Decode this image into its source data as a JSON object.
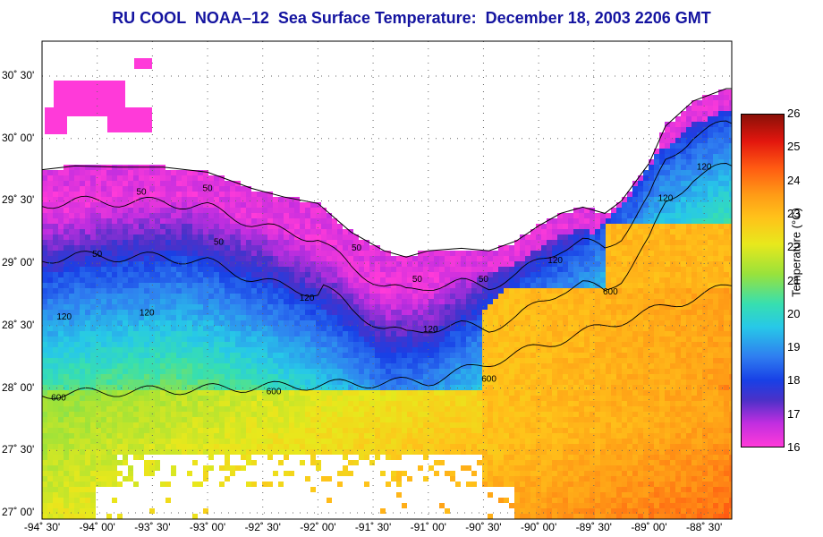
{
  "title": "RU COOL  NOAA–12  Sea Surface Temperature:  December 18, 2003 2206 GMT",
  "map": {
    "lat_labels": [
      {
        "value": 30.5,
        "text": "30˚ 30'"
      },
      {
        "value": 30.0,
        "text": "30˚ 00'"
      },
      {
        "value": 29.5,
        "text": "29˚ 30'"
      },
      {
        "value": 29.0,
        "text": "29˚ 00'"
      },
      {
        "value": 28.5,
        "text": "28˚ 30'"
      },
      {
        "value": 28.0,
        "text": "28˚ 00'"
      },
      {
        "value": 27.5,
        "text": "27˚ 30'"
      },
      {
        "value": 27.0,
        "text": "27˚ 00'"
      }
    ],
    "lon_labels": [
      {
        "value": -94.5,
        "text": "-94˚ 30'"
      },
      {
        "value": -94.0,
        "text": "-94˚ 00'"
      },
      {
        "value": -93.5,
        "text": "-93˚ 30'"
      },
      {
        "value": -93.0,
        "text": "-93˚ 00'"
      },
      {
        "value": -92.5,
        "text": "-92˚ 30'"
      },
      {
        "value": -92.0,
        "text": "-92˚ 00'"
      },
      {
        "value": -91.5,
        "text": "-91˚ 30'"
      },
      {
        "value": -91.0,
        "text": "-91˚ 00'"
      },
      {
        "value": -90.5,
        "text": "-90˚ 30'"
      },
      {
        "value": -90.0,
        "text": "-90˚ 00'"
      },
      {
        "value": -89.5,
        "text": "-89˚ 30'"
      },
      {
        "value": -89.0,
        "text": "-89˚ 00'"
      },
      {
        "value": -88.5,
        "text": "-88˚ 30'"
      }
    ],
    "contour_labels": [
      {
        "text": "50",
        "lon": -93.6,
        "lat": 29.55
      },
      {
        "text": "50",
        "lon": -93.0,
        "lat": 29.58
      },
      {
        "text": "50",
        "lon": -92.9,
        "lat": 29.15
      },
      {
        "text": "50",
        "lon": -94.0,
        "lat": 29.05
      },
      {
        "text": "50",
        "lon": -91.65,
        "lat": 29.1
      },
      {
        "text": "50",
        "lon": -91.1,
        "lat": 28.85
      },
      {
        "text": "50",
        "lon": -90.5,
        "lat": 28.85
      },
      {
        "text": "120",
        "lon": -94.3,
        "lat": 28.55
      },
      {
        "text": "120",
        "lon": -93.55,
        "lat": 28.58
      },
      {
        "text": "120",
        "lon": -92.1,
        "lat": 28.7
      },
      {
        "text": "120",
        "lon": -90.98,
        "lat": 28.45
      },
      {
        "text": "120",
        "lon": -89.85,
        "lat": 29.0
      },
      {
        "text": "120",
        "lon": -88.85,
        "lat": 29.5
      },
      {
        "text": "120",
        "lon": -88.5,
        "lat": 29.75
      },
      {
        "text": "600",
        "lon": -94.35,
        "lat": 27.9
      },
      {
        "text": "600",
        "lon": -92.4,
        "lat": 27.95
      },
      {
        "text": "600",
        "lon": -90.45,
        "lat": 28.05
      },
      {
        "text": "600",
        "lon": -89.35,
        "lat": 28.75
      }
    ],
    "colors": {
      "land": "#ffffff",
      "cloud": "#ffffff",
      "frame": "#000000",
      "grid": "#555555"
    }
  },
  "colorbar": {
    "title": "Temperature (°C)",
    "ticks": [
      16,
      17,
      18,
      19,
      20,
      21,
      22,
      23,
      24,
      25,
      26
    ],
    "range": [
      16,
      26
    ]
  }
}
